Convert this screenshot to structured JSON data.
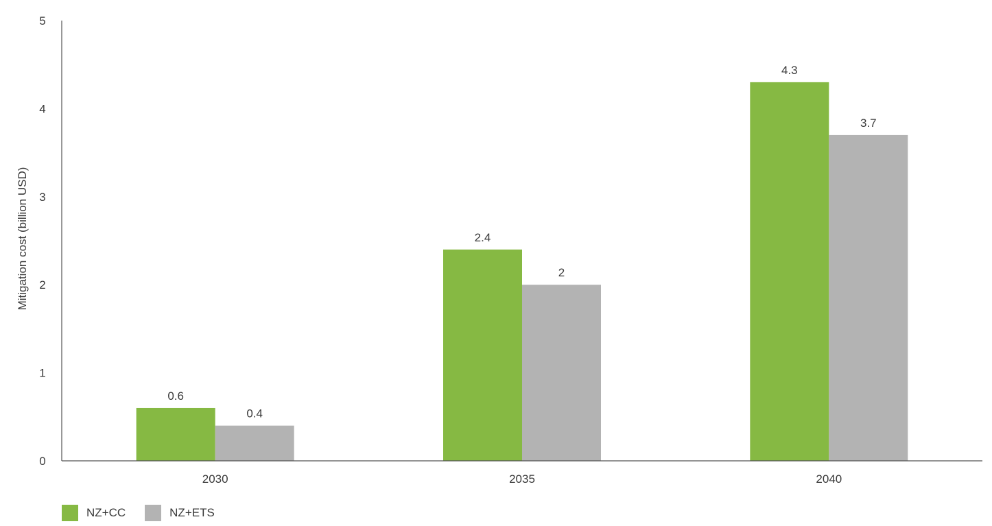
{
  "chart_data": {
    "type": "bar",
    "categories": [
      "2030",
      "2035",
      "2040"
    ],
    "series": [
      {
        "name": "NZ+CC",
        "values": [
          0.6,
          2.4,
          4.3
        ],
        "color": "#86b943"
      },
      {
        "name": "NZ+ETS",
        "values": [
          0.4,
          2,
          3.7
        ],
        "color": "#b3b3b3"
      }
    ],
    "title": "",
    "xlabel": "",
    "ylabel": "Mitigation cost (billion USD)",
    "ylim": [
      0,
      5
    ],
    "yticks": [
      "0",
      "1",
      "2",
      "3",
      "4",
      "5"
    ],
    "data_labels": [
      [
        "0.6",
        "2.4",
        "4.3"
      ],
      [
        "0.4",
        "2",
        "3.7"
      ]
    ],
    "grid": false,
    "legend_position": "bottom-left"
  }
}
